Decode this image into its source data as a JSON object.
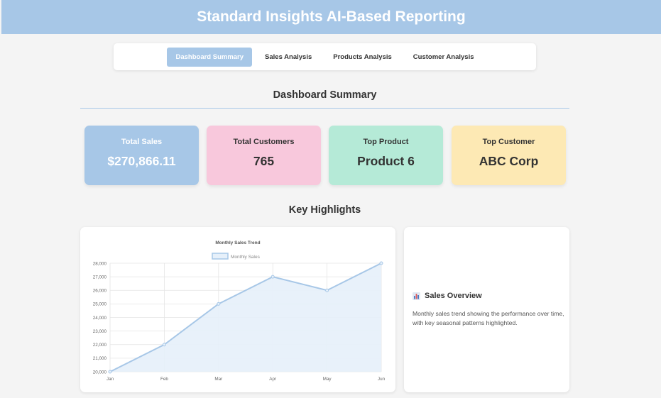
{
  "header": {
    "title": "Standard Insights AI-Based Reporting"
  },
  "nav": {
    "tabs": [
      {
        "label": "Dashboard Summary",
        "active": true
      },
      {
        "label": "Sales Analysis",
        "active": false
      },
      {
        "label": "Products Analysis",
        "active": false
      },
      {
        "label": "Customer Analysis",
        "active": false
      }
    ]
  },
  "summary": {
    "title": "Dashboard Summary",
    "cards": [
      {
        "label": "Total Sales",
        "value": "$270,866.11",
        "color": "#a7c7e7",
        "text_color": "#ffffff"
      },
      {
        "label": "Total Customers",
        "value": "765",
        "color": "#f8c8dc",
        "text_color": "#333333"
      },
      {
        "label": "Top Product",
        "value": "Product 6",
        "color": "#b5ead7",
        "text_color": "#333333"
      },
      {
        "label": "Top Customer",
        "value": "ABC Corp",
        "color": "#fde9b4",
        "text_color": "#333333"
      }
    ]
  },
  "highlights": {
    "title": "Key Highlights",
    "overview": {
      "icon": "bar-chart-icon",
      "title": "Sales Overview",
      "text": "Monthly sales trend showing the performance over time, with key seasonal patterns highlighted."
    }
  },
  "chart_data": {
    "type": "line",
    "title": "Monthly Sales Trend",
    "categories": [
      "Jan",
      "Feb",
      "Mar",
      "Apr",
      "May",
      "Jun"
    ],
    "series": [
      {
        "name": "Monthly Sales",
        "values": [
          20000,
          22000,
          25000,
          27000,
          26000,
          28000
        ],
        "color": "#a7c7e7",
        "fill": "#e6f0fa"
      }
    ],
    "yticks": [
      "20,000",
      "21,000",
      "22,000",
      "23,000",
      "24,000",
      "25,000",
      "26,000",
      "27,000",
      "28,000"
    ],
    "ylim": [
      20000,
      28000
    ],
    "grid": true,
    "legend": "top",
    "xlabel": "",
    "ylabel": ""
  }
}
